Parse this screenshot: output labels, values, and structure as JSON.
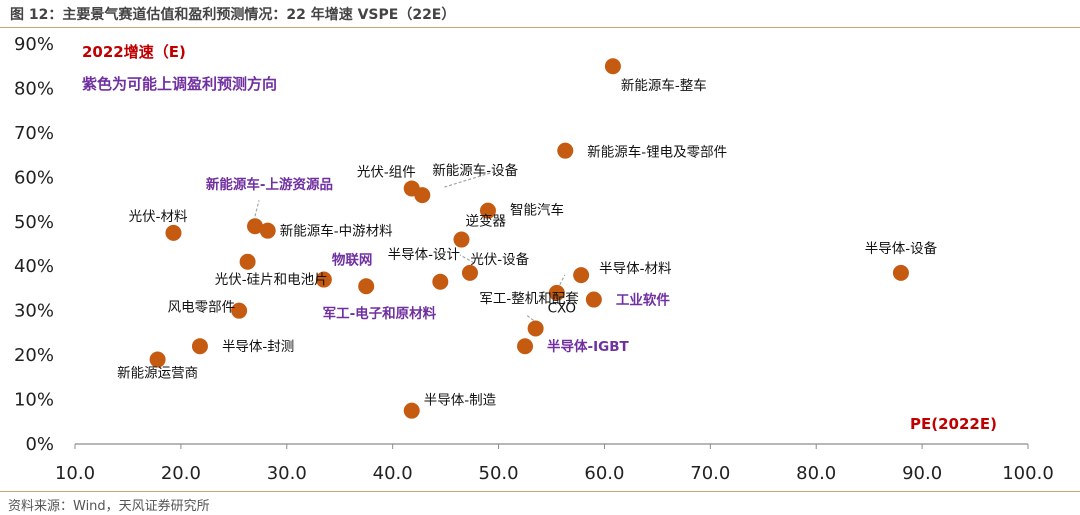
{
  "figure": {
    "title": "图 12：主要景气赛道估值和盈利预测情况：22 年增速 VSPE（22E）",
    "source": "资料来源：Wind，天风证券研究所"
  },
  "chart_data": {
    "type": "scatter",
    "title": "图 12：主要景气赛道估值和盈利预测情况：22 年增速 VSPE（22E）",
    "xlabel": "PE(2022E)",
    "ylabel": "2022增速（E)",
    "note": "紫色为可能上调盈利预测方向",
    "xlim": [
      10,
      100
    ],
    "ylim": [
      0,
      0.9
    ],
    "x_ticks": [
      "10.0",
      "20.0",
      "30.0",
      "40.0",
      "50.0",
      "60.0",
      "70.0",
      "80.0",
      "90.0",
      "100.0"
    ],
    "y_ticks": [
      "0%",
      "10%",
      "20%",
      "30%",
      "40%",
      "50%",
      "60%",
      "70%",
      "80%",
      "90%"
    ],
    "grid": false,
    "marker_color": "#c55a11",
    "highlight_color": "#7030a0",
    "points": [
      {
        "label": "新能源车-整车",
        "x": 60.8,
        "y": 0.85,
        "highlight": false
      },
      {
        "label": "新能源车-锂电及零部件",
        "x": 56.3,
        "y": 0.66,
        "highlight": false
      },
      {
        "label": "光伏-组件",
        "x": 41.8,
        "y": 0.575,
        "highlight": false
      },
      {
        "label": "新能源车-设备",
        "x": 42.8,
        "y": 0.56,
        "highlight": false
      },
      {
        "label": "智能汽车",
        "x": 49.0,
        "y": 0.525,
        "highlight": false
      },
      {
        "label": "新能源车-上游资源品",
        "x": 27.0,
        "y": 0.49,
        "highlight": true
      },
      {
        "label": "新能源车-中游材料",
        "x": 28.2,
        "y": 0.48,
        "highlight": false
      },
      {
        "label": "光伏-材料",
        "x": 19.3,
        "y": 0.475,
        "highlight": false
      },
      {
        "label": "逆变器",
        "x": 46.5,
        "y": 0.46,
        "highlight": false
      },
      {
        "label": "光伏-硅片和电池片",
        "x": 26.3,
        "y": 0.41,
        "highlight": false
      },
      {
        "label": "半导体-设备",
        "x": 88.0,
        "y": 0.385,
        "highlight": false
      },
      {
        "label": "半导体-材料",
        "x": 57.8,
        "y": 0.38,
        "highlight": false
      },
      {
        "label": "半导体-设计",
        "x": 47.3,
        "y": 0.385,
        "highlight": false
      },
      {
        "label": "物联网",
        "x": 33.5,
        "y": 0.37,
        "highlight": true
      },
      {
        "label": "光伏-设备",
        "x": 44.5,
        "y": 0.365,
        "highlight": false
      },
      {
        "label": "军工-电子和原材料",
        "x": 37.5,
        "y": 0.355,
        "highlight": true
      },
      {
        "label": "军工-整机和配套",
        "x": 55.5,
        "y": 0.34,
        "highlight": false
      },
      {
        "label": "工业软件",
        "x": 59.0,
        "y": 0.325,
        "highlight": true
      },
      {
        "label": "风电零部件",
        "x": 25.5,
        "y": 0.3,
        "highlight": false
      },
      {
        "label": "CXO",
        "x": 53.5,
        "y": 0.26,
        "highlight": false
      },
      {
        "label": "半导体-IGBT",
        "x": 52.5,
        "y": 0.22,
        "highlight": true
      },
      {
        "label": "半导体-封测",
        "x": 21.8,
        "y": 0.22,
        "highlight": false
      },
      {
        "label": "新能源运营商",
        "x": 17.8,
        "y": 0.19,
        "highlight": false
      },
      {
        "label": "半导体-制造",
        "x": 41.8,
        "y": 0.075,
        "highlight": false
      }
    ]
  }
}
